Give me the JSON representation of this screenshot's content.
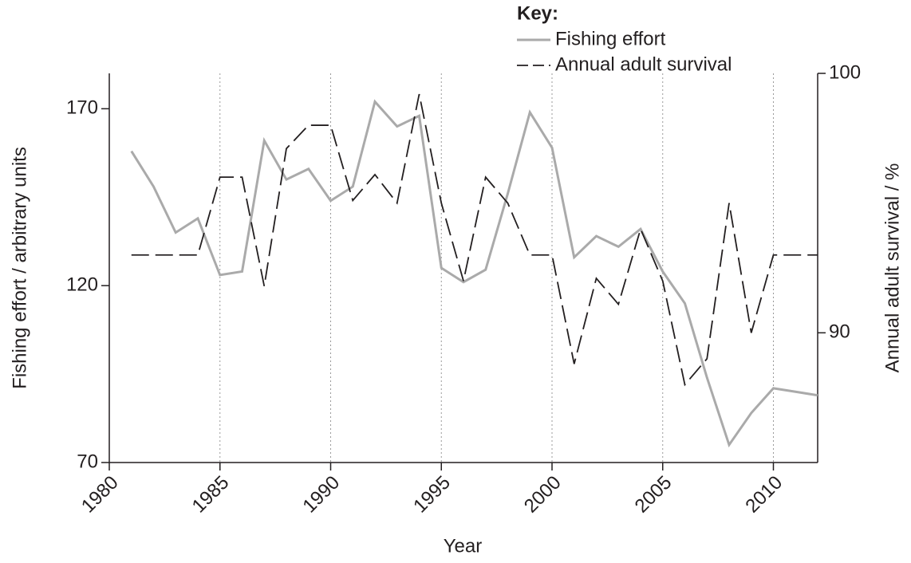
{
  "chart_data": {
    "type": "line",
    "x_label": "Year",
    "y_label": "Fishing effort / arbitrary units",
    "y2_label": "Annual adult survival / %",
    "legend_title": "Key:",
    "x": [
      1981,
      1982,
      1983,
      1984,
      1985,
      1986,
      1987,
      1988,
      1989,
      1990,
      1991,
      1992,
      1993,
      1994,
      1995,
      1996,
      1997,
      1998,
      1999,
      2000,
      2001,
      2002,
      2003,
      2004,
      2005,
      2006,
      2007,
      2008,
      2009,
      2010,
      2011,
      2012
    ],
    "series": [
      {
        "name": "Fishing effort",
        "color": "#aaaaaa",
        "dash": false,
        "values": [
          158,
          148,
          135,
          139,
          123,
          124,
          161,
          150,
          153,
          144,
          148,
          172,
          165,
          168,
          125,
          121,
          124.5,
          146,
          169,
          159,
          128,
          134,
          131,
          136,
          124,
          115,
          94,
          75,
          84,
          91,
          90,
          89
        ]
      },
      {
        "name": "Annual adult survival",
        "color": "#231f20",
        "dash": true,
        "axis": "y2",
        "values": [
          93,
          93,
          93,
          93,
          96,
          96,
          91.8,
          97.1,
          98,
          98,
          95.1,
          96.1,
          95,
          99.2,
          95,
          92,
          96,
          95,
          93,
          93,
          88.8,
          92.1,
          91.1,
          94,
          92,
          88,
          89,
          95,
          90,
          93,
          93,
          93
        ]
      }
    ],
    "xlim": [
      1980,
      2012
    ],
    "xticks": [
      1980,
      1985,
      1990,
      1995,
      2000,
      2005,
      2010
    ],
    "xgrid": [
      1985,
      1990,
      1995,
      2000,
      2005,
      2010
    ],
    "ylim": [
      70,
      180
    ],
    "yticks": [
      70,
      120,
      170
    ],
    "y2lim": [
      85,
      100
    ],
    "y2ticks": [
      90,
      100
    ],
    "legend": "top-right"
  }
}
